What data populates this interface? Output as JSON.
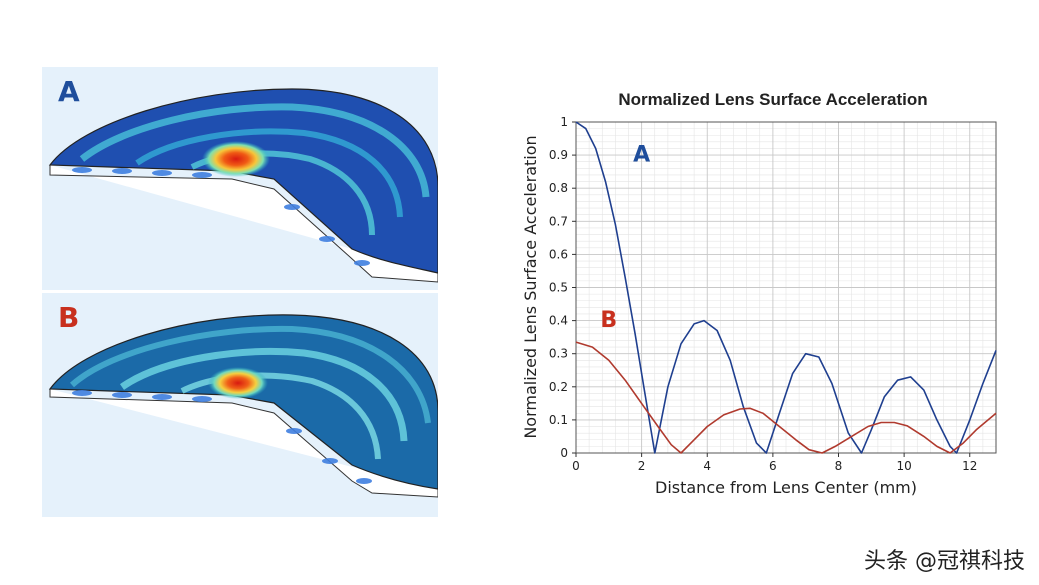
{
  "panels": [
    {
      "label": "A",
      "color": "#1f4e9c"
    },
    {
      "label": "B",
      "color": "#c8301e"
    }
  ],
  "watermark": "头条 @冠祺科技",
  "colors": {
    "curve_a": "#1f3f8f",
    "curve_b": "#b03a2e"
  },
  "chart_data": {
    "type": "line",
    "title": "Normalized Lens Surface Acceleration",
    "xlabel": "Distance from Lens Center (mm)",
    "ylabel": "Normalized Lens Surface Acceleration",
    "xlim": [
      0,
      12.8
    ],
    "ylim": [
      0,
      1
    ],
    "xticks": [
      0,
      2,
      4,
      6,
      8,
      10,
      12
    ],
    "yticks": [
      0,
      0.1,
      0.2,
      0.3,
      0.4,
      0.5,
      0.6,
      0.7,
      0.8,
      0.9,
      1
    ],
    "grid": true,
    "annotations": [
      {
        "text": "A",
        "x": 2.0,
        "y": 0.88,
        "color": "#1f4e9c"
      },
      {
        "text": "B",
        "x": 1.0,
        "y": 0.38,
        "color": "#c8301e"
      }
    ],
    "series": [
      {
        "name": "A",
        "x": [
          0,
          0.3,
          0.6,
          0.9,
          1.2,
          1.5,
          1.8,
          2.1,
          2.4,
          2.8,
          3.2,
          3.6,
          3.9,
          4.3,
          4.7,
          5.1,
          5.5,
          5.8,
          6.2,
          6.6,
          7.0,
          7.4,
          7.8,
          8.3,
          8.7,
          9.0,
          9.4,
          9.8,
          10.2,
          10.6,
          11.0,
          11.4,
          11.6,
          12.0,
          12.4,
          12.8
        ],
        "y": [
          1.0,
          0.98,
          0.92,
          0.82,
          0.69,
          0.53,
          0.36,
          0.18,
          0.0,
          0.2,
          0.33,
          0.39,
          0.4,
          0.37,
          0.28,
          0.14,
          0.03,
          0.0,
          0.12,
          0.24,
          0.3,
          0.29,
          0.21,
          0.06,
          0.0,
          0.07,
          0.17,
          0.22,
          0.23,
          0.19,
          0.1,
          0.02,
          0.0,
          0.1,
          0.21,
          0.31
        ]
      },
      {
        "name": "B",
        "x": [
          0,
          0.5,
          1.0,
          1.5,
          2.0,
          2.5,
          2.9,
          3.2,
          3.6,
          4.0,
          4.5,
          5.0,
          5.3,
          5.7,
          6.2,
          6.7,
          7.1,
          7.5,
          7.9,
          8.4,
          8.9,
          9.3,
          9.7,
          10.1,
          10.6,
          11.0,
          11.4,
          11.8,
          12.2,
          12.8
        ],
        "y": [
          0.335,
          0.32,
          0.28,
          0.22,
          0.15,
          0.08,
          0.025,
          0.0,
          0.04,
          0.08,
          0.115,
          0.133,
          0.135,
          0.12,
          0.08,
          0.04,
          0.01,
          0.0,
          0.02,
          0.05,
          0.08,
          0.092,
          0.092,
          0.082,
          0.05,
          0.02,
          0.0,
          0.03,
          0.07,
          0.12
        ]
      }
    ]
  }
}
